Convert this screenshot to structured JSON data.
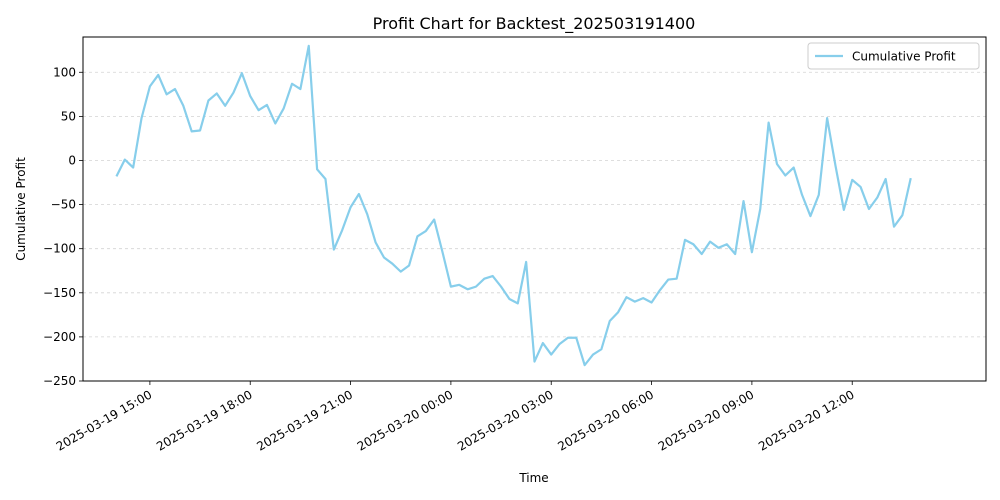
{
  "chart_data": {
    "type": "line",
    "title": "Profit Chart for Backtest_202503191400",
    "xlabel": "Time",
    "ylabel": "Cumulative Profit",
    "ylim": [
      -250,
      140
    ],
    "xlim": [
      "2025-03-19 13:00",
      "2025-03-20 16:00"
    ],
    "yticks": [
      -250,
      -200,
      -150,
      -100,
      -50,
      0,
      50,
      100
    ],
    "ytick_labels": [
      "−250",
      "−200",
      "−150",
      "−100",
      "−50",
      "0",
      "50",
      "100"
    ],
    "xticks": [
      "2025-03-19 15:00",
      "2025-03-19 18:00",
      "2025-03-19 21:00",
      "2025-03-20 00:00",
      "2025-03-20 03:00",
      "2025-03-20 06:00",
      "2025-03-20 09:00",
      "2025-03-20 12:00"
    ],
    "xtick_labels": [
      "2025-03-19 15:00",
      "2025-03-19 18:00",
      "2025-03-19 21:00",
      "2025-03-20 00:00",
      "2025-03-20 03:00",
      "2025-03-20 06:00",
      "2025-03-20 09:00",
      "2025-03-20 12:00"
    ],
    "grid": "horizontal dashed",
    "legend_position": "top-right",
    "series": [
      {
        "name": "Cumulative Profit",
        "color": "#87ceeb",
        "x": [
          "2025-03-19 14:00",
          "2025-03-19 14:15",
          "2025-03-19 14:30",
          "2025-03-19 14:45",
          "2025-03-19 15:00",
          "2025-03-19 15:15",
          "2025-03-19 15:30",
          "2025-03-19 15:45",
          "2025-03-19 16:00",
          "2025-03-19 16:15",
          "2025-03-19 16:30",
          "2025-03-19 16:45",
          "2025-03-19 17:00",
          "2025-03-19 17:15",
          "2025-03-19 17:30",
          "2025-03-19 17:45",
          "2025-03-19 18:00",
          "2025-03-19 18:15",
          "2025-03-19 18:30",
          "2025-03-19 18:45",
          "2025-03-19 19:00",
          "2025-03-19 19:15",
          "2025-03-19 19:30",
          "2025-03-19 19:45",
          "2025-03-19 20:00",
          "2025-03-19 20:15",
          "2025-03-19 20:30",
          "2025-03-19 20:45",
          "2025-03-19 21:00",
          "2025-03-19 21:15",
          "2025-03-19 21:30",
          "2025-03-19 21:45",
          "2025-03-19 22:00",
          "2025-03-19 22:15",
          "2025-03-19 22:30",
          "2025-03-19 22:45",
          "2025-03-19 23:00",
          "2025-03-19 23:15",
          "2025-03-19 23:30",
          "2025-03-19 23:45",
          "2025-03-20 00:00",
          "2025-03-20 00:15",
          "2025-03-20 00:30",
          "2025-03-20 00:45",
          "2025-03-20 01:00",
          "2025-03-20 01:15",
          "2025-03-20 01:30",
          "2025-03-20 01:45",
          "2025-03-20 02:00",
          "2025-03-20 02:15",
          "2025-03-20 02:30",
          "2025-03-20 02:45",
          "2025-03-20 03:00",
          "2025-03-20 03:15",
          "2025-03-20 03:30",
          "2025-03-20 03:45",
          "2025-03-20 04:00",
          "2025-03-20 04:15",
          "2025-03-20 04:30",
          "2025-03-20 04:45",
          "2025-03-20 05:00",
          "2025-03-20 05:15",
          "2025-03-20 05:30",
          "2025-03-20 05:45",
          "2025-03-20 06:00",
          "2025-03-20 06:15",
          "2025-03-20 06:30",
          "2025-03-20 06:45",
          "2025-03-20 07:00",
          "2025-03-20 07:15",
          "2025-03-20 07:30",
          "2025-03-20 07:45",
          "2025-03-20 08:00",
          "2025-03-20 08:15",
          "2025-03-20 08:30",
          "2025-03-20 08:45",
          "2025-03-20 09:00",
          "2025-03-20 09:15",
          "2025-03-20 09:30",
          "2025-03-20 09:45",
          "2025-03-20 10:00",
          "2025-03-20 10:15",
          "2025-03-20 10:30",
          "2025-03-20 10:45",
          "2025-03-20 11:00",
          "2025-03-20 11:15",
          "2025-03-20 11:30",
          "2025-03-20 11:45",
          "2025-03-20 12:00",
          "2025-03-20 12:15",
          "2025-03-20 12:30",
          "2025-03-20 12:45",
          "2025-03-20 13:00",
          "2025-03-20 13:15",
          "2025-03-20 13:30",
          "2025-03-20 13:45"
        ],
        "y": [
          -18,
          1,
          -8,
          48,
          84,
          97,
          75,
          81,
          62,
          33,
          34,
          68,
          76,
          62,
          77,
          99,
          73,
          57,
          63,
          42,
          59,
          87,
          81,
          130,
          -10,
          -21,
          -101,
          -79,
          -53,
          -38,
          -61,
          -93,
          -110,
          -117,
          -126,
          -119,
          -86,
          -80,
          -67,
          -104,
          -143,
          -141,
          -146,
          -143,
          -134,
          -131,
          -143,
          -157,
          -162,
          -115,
          -228,
          -207,
          -220,
          -208,
          -201,
          -201,
          -232,
          -220,
          -214,
          -182,
          -172,
          -155,
          -160,
          -156,
          -161,
          -147,
          -135,
          -134,
          -90,
          -95,
          -106,
          -92,
          -99,
          -95,
          -106,
          -46,
          -104,
          -55,
          43,
          -4,
          -17,
          -8,
          -39,
          -63,
          -39,
          48,
          -6,
          -56,
          -22,
          -30,
          -55,
          -42,
          -21,
          -75,
          -62,
          -20
        ]
      }
    ]
  }
}
